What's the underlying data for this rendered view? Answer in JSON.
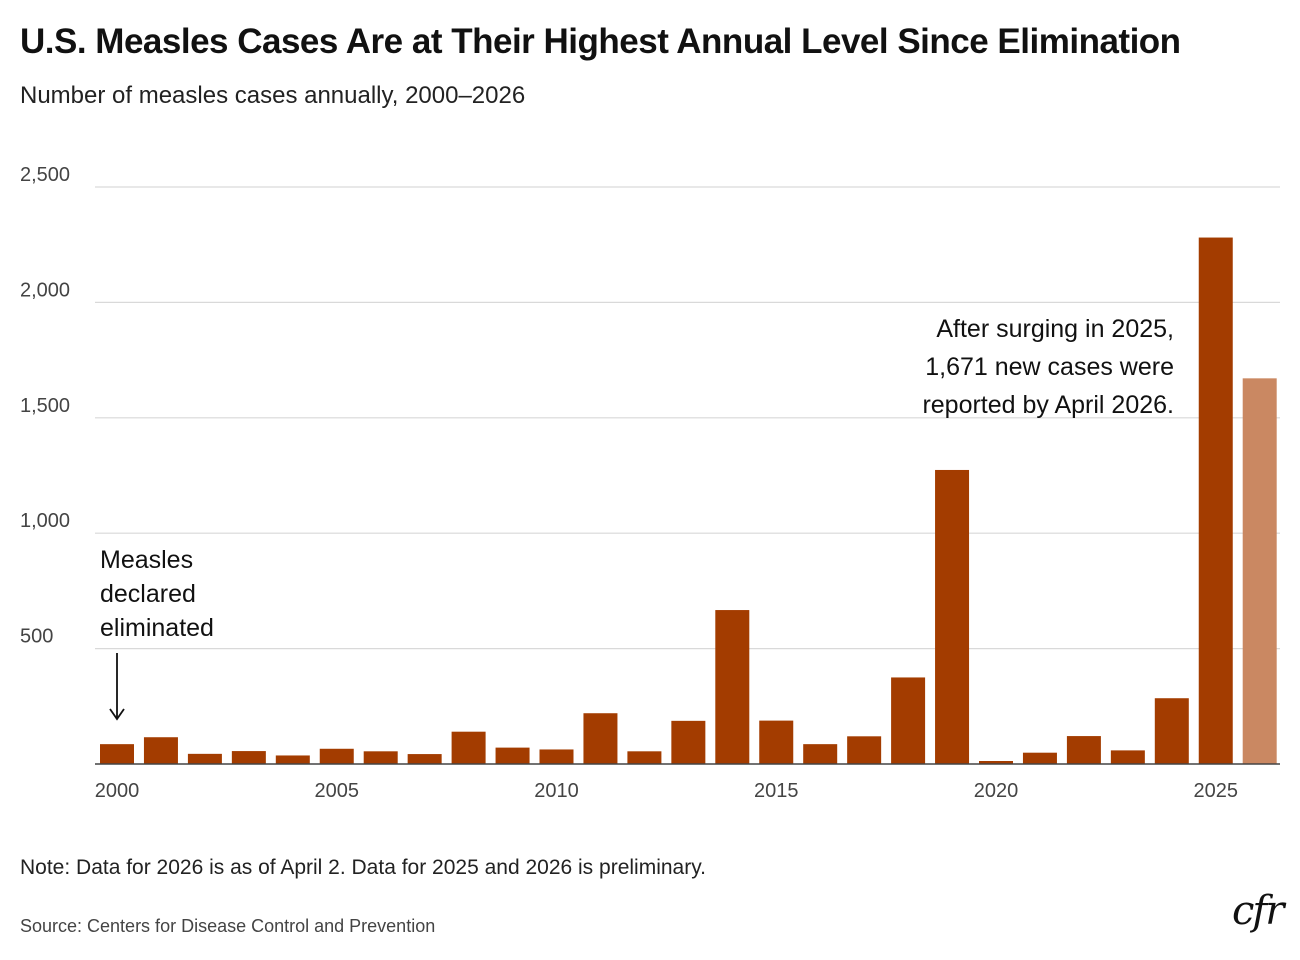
{
  "title": "U.S. Measles Cases Are at Their Highest Annual Level Since Elimination",
  "subtitle": "Number of measles cases annually, 2000–2026",
  "annotations": {
    "surge_line1": "After surging in 2025,",
    "surge_line2": "1,671 new cases were",
    "surge_line3": "reported by April 2026.",
    "elim_line1": "Measles",
    "elim_line2": "declared",
    "elim_line3": "eliminated"
  },
  "note": "Note: Data for 2026 is as of April 2. Data for 2025 and 2026 is preliminary.",
  "source": "Source: Centers for Disease Control and Prevention",
  "logo_text": "cfr",
  "colors": {
    "bar": "#a33c00",
    "bar_preliminary": "#ca8862",
    "grid": "#d9d9d9",
    "axis": "#444444"
  },
  "chart_data": {
    "type": "bar",
    "x": [
      2000,
      2001,
      2002,
      2003,
      2004,
      2005,
      2006,
      2007,
      2008,
      2009,
      2010,
      2011,
      2012,
      2013,
      2014,
      2015,
      2016,
      2017,
      2018,
      2019,
      2020,
      2021,
      2022,
      2023,
      2024,
      2025,
      2026
    ],
    "values": [
      86,
      116,
      44,
      56,
      37,
      66,
      55,
      43,
      140,
      71,
      63,
      220,
      55,
      187,
      667,
      188,
      86,
      120,
      375,
      1274,
      13,
      49,
      121,
      59,
      285,
      2281,
      1671
    ],
    "highlight": {
      "year": 2026,
      "label": "preliminary, as of April 2"
    },
    "ylim": [
      0,
      2500
    ],
    "yticks": [
      500,
      1000,
      1500,
      2000,
      2500
    ],
    "ytick_labels": [
      "500",
      "1,000",
      "1,500",
      "2,000",
      "2,500"
    ],
    "xticks": [
      2000,
      2005,
      2010,
      2015,
      2020,
      2025
    ],
    "xtick_labels": [
      "2000",
      "2005",
      "2010",
      "2015",
      "2020",
      "2025"
    ],
    "grid": true,
    "xlabel": "",
    "ylabel": ""
  }
}
